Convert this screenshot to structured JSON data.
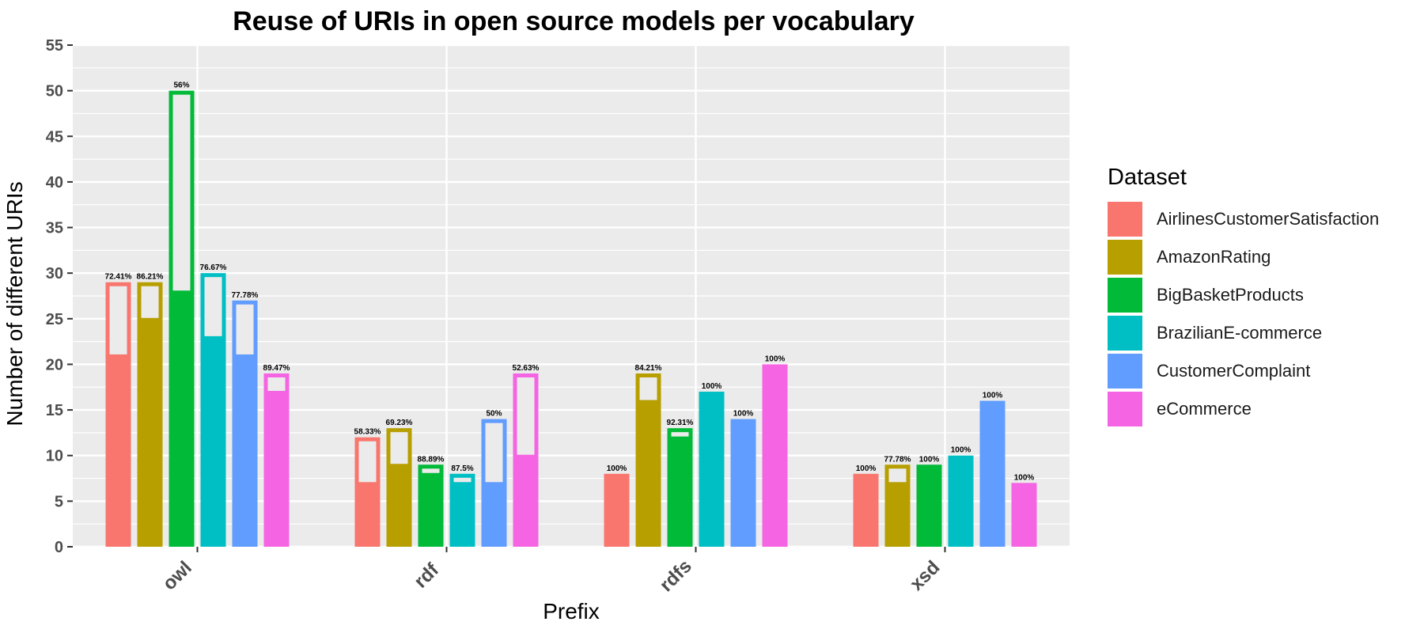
{
  "chart_data": {
    "type": "bar",
    "title": "Reuse of URIs in open source models per vocabulary",
    "xlabel": "Prefix",
    "ylabel": "Number of different URIs",
    "ylim": [
      0,
      55
    ],
    "yticks": [
      0,
      5,
      10,
      15,
      20,
      25,
      30,
      35,
      40,
      45,
      50,
      55
    ],
    "grid": true,
    "legend_position": "right",
    "legend_title": "Dataset",
    "categories": [
      "owl",
      "rdf",
      "rdfs",
      "xsd"
    ],
    "series": [
      {
        "name": "AirlinesCustomerSatisfaction",
        "color": "#F8766D",
        "values": [
          29,
          12,
          8,
          8
        ],
        "reused": [
          21,
          7,
          8,
          8
        ],
        "labels": [
          "72.41%",
          "58.33%",
          "100%",
          "100%"
        ]
      },
      {
        "name": "AmazonRating",
        "color": "#B79F00",
        "values": [
          29,
          13,
          19,
          9
        ],
        "reused": [
          25,
          9,
          16,
          7
        ],
        "labels": [
          "86.21%",
          "69.23%",
          "84.21%",
          "77.78%"
        ]
      },
      {
        "name": "BigBasketProducts",
        "color": "#00BA38",
        "values": [
          50,
          9,
          13,
          9
        ],
        "reused": [
          28,
          8,
          12,
          9
        ],
        "labels": [
          "56%",
          "88.89%",
          "92.31%",
          "100%"
        ]
      },
      {
        "name": "BrazilianE-commerce",
        "color": "#00BFC4",
        "values": [
          30,
          8,
          17,
          10
        ],
        "reused": [
          23,
          7,
          17,
          10
        ],
        "labels": [
          "76.67%",
          "87.5%",
          "100%",
          "100%"
        ]
      },
      {
        "name": "CustomerComplaint",
        "color": "#619CFF",
        "values": [
          27,
          14,
          14,
          16
        ],
        "reused": [
          21,
          7,
          14,
          16
        ],
        "labels": [
          "77.78%",
          "50%",
          "100%",
          "100%"
        ]
      },
      {
        "name": "eCommerce",
        "color": "#F564E3",
        "values": [
          19,
          19,
          20,
          7
        ],
        "reused": [
          17,
          10,
          20,
          7
        ],
        "labels": [
          "89.47%",
          "52.63%",
          "100%",
          "100%"
        ]
      }
    ]
  }
}
